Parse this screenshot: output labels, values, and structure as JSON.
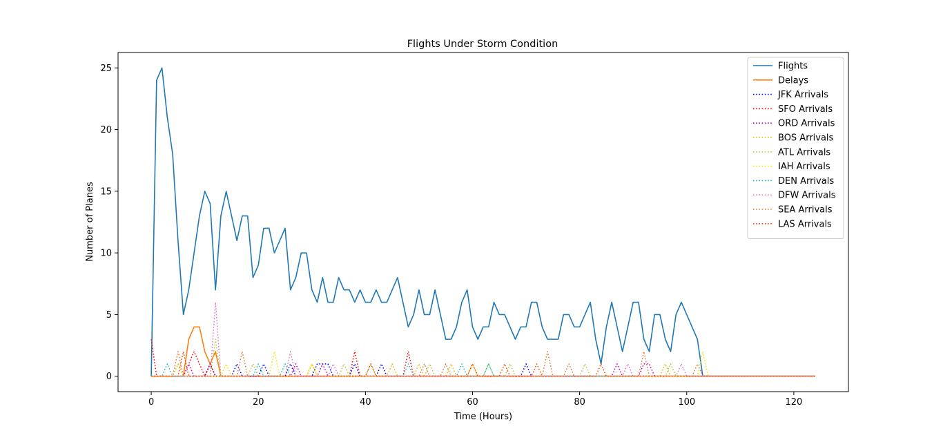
{
  "chart_data": {
    "type": "line",
    "title": "Flights Under Storm Condition",
    "xlabel": "Time (Hours)",
    "ylabel": "Number of Planes",
    "xlim": [
      -6.2,
      130.2
    ],
    "ylim": [
      -1.25,
      26.25
    ],
    "xticks": [
      0,
      20,
      40,
      60,
      80,
      100,
      120
    ],
    "yticks": [
      0,
      5,
      10,
      15,
      20,
      25
    ],
    "grid": false,
    "legend_position": "top-right",
    "series": [
      {
        "name": "Flights",
        "color": "#1f77b4",
        "style": "solid",
        "x": [
          0,
          1,
          2,
          3,
          4,
          5,
          6,
          7,
          8,
          9,
          10,
          11,
          12,
          13,
          14,
          15,
          16,
          17,
          18,
          19,
          20,
          21,
          22,
          23,
          24,
          25,
          26,
          27,
          28,
          29,
          30,
          31,
          32,
          33,
          34,
          35,
          36,
          37,
          38,
          39,
          40,
          41,
          42,
          43,
          44,
          45,
          46,
          47,
          48,
          49,
          50,
          51,
          52,
          53,
          54,
          55,
          56,
          57,
          58,
          59,
          60,
          61,
          62,
          63,
          64,
          65,
          66,
          67,
          68,
          69,
          70,
          71,
          72,
          73,
          74,
          75,
          76,
          77,
          78,
          79,
          80,
          81,
          82,
          83,
          84,
          85,
          86,
          87,
          88,
          89,
          90,
          91,
          92,
          93,
          94,
          95,
          96,
          97,
          98,
          99,
          100,
          101,
          102,
          103,
          104,
          124
        ],
        "y": [
          0,
          24,
          25,
          21,
          18,
          11,
          5,
          7,
          10,
          13,
          15,
          14,
          7,
          13,
          15,
          13,
          11,
          13,
          13,
          8,
          9,
          12,
          12,
          10,
          11,
          12,
          7,
          8,
          10,
          10,
          7,
          6,
          8,
          6,
          6,
          8,
          7,
          7,
          6,
          7,
          6,
          6,
          7,
          6,
          6,
          7,
          8,
          6,
          4,
          5,
          7,
          5,
          5,
          7,
          5,
          3,
          3,
          4,
          6,
          7,
          4,
          3,
          4,
          4,
          6,
          5,
          5,
          4,
          3,
          4,
          4,
          6,
          6,
          4,
          3,
          3,
          3,
          5,
          5,
          4,
          4,
          5,
          6,
          3,
          1,
          4,
          6,
          4,
          2,
          4,
          6,
          6,
          3,
          2,
          5,
          5,
          3,
          2,
          5,
          6,
          5,
          4,
          3,
          0,
          0,
          0
        ]
      },
      {
        "name": "Delays",
        "color": "#ff7f0e",
        "style": "solid",
        "x": [
          0,
          6,
          7,
          8,
          9,
          10,
          11,
          12,
          13,
          14,
          124
        ],
        "y": [
          0,
          0,
          3,
          4,
          4,
          2,
          1,
          2,
          0,
          0,
          0
        ]
      },
      {
        "name": "JFK Arrivals",
        "color": "#0000ff",
        "style": "dotted",
        "x": [
          0,
          10,
          11,
          12,
          15,
          16,
          17,
          20,
          21,
          22,
          25,
          26,
          27,
          30,
          31,
          32,
          33,
          34,
          37,
          38,
          39,
          42,
          43,
          44,
          69,
          70,
          71,
          124
        ],
        "y": [
          0,
          0,
          1,
          0,
          0,
          1,
          0,
          0,
          1,
          0,
          0,
          1,
          0,
          0,
          1,
          1,
          1,
          0,
          0,
          1,
          0,
          0,
          1,
          0,
          0,
          1,
          0,
          0
        ]
      },
      {
        "name": "SFO Arrivals",
        "color": "#ff0000",
        "style": "dotted",
        "x": [
          0,
          1,
          2,
          6,
          7,
          8,
          9,
          10,
          11,
          12,
          37,
          38,
          39,
          47,
          48,
          49,
          124
        ],
        "y": [
          3,
          0,
          0,
          0,
          1,
          2,
          1,
          0,
          1,
          0,
          0,
          2,
          0,
          0,
          2,
          0,
          0
        ]
      },
      {
        "name": "ORD Arrivals",
        "color": "#bf00bf",
        "style": "dotted",
        "x": [
          0,
          6,
          7,
          8,
          26,
          27,
          28,
          31,
          32,
          33,
          86,
          87,
          88,
          91,
          92,
          93,
          94,
          124
        ],
        "y": [
          0,
          0,
          1,
          0,
          0,
          1,
          0,
          0,
          1,
          0,
          0,
          1,
          0,
          0,
          1,
          1,
          0,
          0
        ]
      },
      {
        "name": "BOS Arrivals",
        "color": "#e6b800",
        "style": "dotted",
        "x": [
          0,
          4,
          5,
          6,
          29,
          30,
          31,
          44,
          45,
          46,
          49,
          50,
          51,
          55,
          56,
          57,
          59,
          60,
          61,
          95,
          96,
          97,
          124
        ],
        "y": [
          0,
          0,
          1,
          0,
          0,
          1,
          0,
          0,
          1,
          0,
          0,
          1,
          0,
          0,
          1,
          0,
          0,
          1,
          0,
          0,
          1,
          0,
          0
        ]
      },
      {
        "name": "ATL Arrivals",
        "color": "#b5c944",
        "style": "dotted",
        "x": [
          0,
          11,
          12,
          13,
          18,
          19,
          20,
          35,
          36,
          37,
          40,
          41,
          42,
          51,
          52,
          53,
          62,
          63,
          64,
          66,
          67,
          68,
          80,
          81,
          82,
          96,
          97,
          98,
          124
        ],
        "y": [
          0,
          0,
          3,
          0,
          0,
          1,
          0,
          0,
          1,
          0,
          0,
          1,
          0,
          0,
          1,
          0,
          0,
          1,
          0,
          0,
          1,
          0,
          0,
          1,
          0,
          0,
          1,
          0,
          0
        ]
      },
      {
        "name": "IAH Arrivals",
        "color": "#f5e400",
        "style": "dotted",
        "x": [
          0,
          13,
          14,
          15,
          22,
          23,
          24,
          29,
          30,
          31,
          102,
          103,
          104,
          124
        ],
        "y": [
          0,
          0,
          1,
          0,
          0,
          2,
          0,
          0,
          1,
          0,
          0,
          2,
          0,
          0
        ]
      },
      {
        "name": "DEN Arrivals",
        "color": "#17becf",
        "style": "dotted",
        "x": [
          0,
          2,
          3,
          4,
          19,
          20,
          21,
          24,
          25,
          26,
          47,
          48,
          49,
          57,
          58,
          59,
          62,
          63,
          64,
          124
        ],
        "y": [
          0,
          0,
          1,
          0,
          0,
          1,
          0,
          0,
          1,
          0,
          0,
          1,
          0,
          0,
          1,
          0,
          0,
          1,
          0,
          0
        ]
      },
      {
        "name": "DFW Arrivals",
        "color": "#e377c2",
        "style": "dotted",
        "x": [
          0,
          11,
          12,
          13,
          25,
          26,
          27,
          33,
          34,
          35,
          88,
          89,
          90,
          98,
          99,
          100,
          124
        ],
        "y": [
          0,
          0,
          6,
          0,
          0,
          2,
          0,
          0,
          1,
          0,
          0,
          1,
          0,
          0,
          1,
          0,
          0
        ]
      },
      {
        "name": "SEA Arrivals",
        "color": "#e07b39",
        "style": "dotted",
        "x": [
          0,
          4,
          5,
          6,
          16,
          17,
          18,
          50,
          51,
          52,
          54,
          55,
          56,
          73,
          74,
          75,
          77,
          78,
          79,
          91,
          92,
          93,
          101,
          102,
          103,
          124
        ],
        "y": [
          0,
          0,
          2,
          0,
          0,
          2,
          0,
          0,
          1,
          0,
          0,
          1,
          0,
          0,
          2,
          0,
          0,
          1,
          0,
          0,
          2,
          0,
          0,
          1,
          0,
          0
        ]
      },
      {
        "name": "LAS Arrivals",
        "color": "#ff4500",
        "style": "dotted",
        "x": [
          0,
          1,
          2,
          5,
          6,
          7,
          40,
          41,
          42,
          59,
          60,
          61,
          65,
          66,
          67,
          71,
          72,
          73,
          83,
          84,
          85,
          124
        ],
        "y": [
          0,
          0,
          0,
          0,
          2,
          0,
          0,
          1,
          0,
          0,
          1,
          0,
          0,
          1,
          0,
          0,
          1,
          0,
          0,
          1,
          0,
          0
        ]
      }
    ]
  }
}
